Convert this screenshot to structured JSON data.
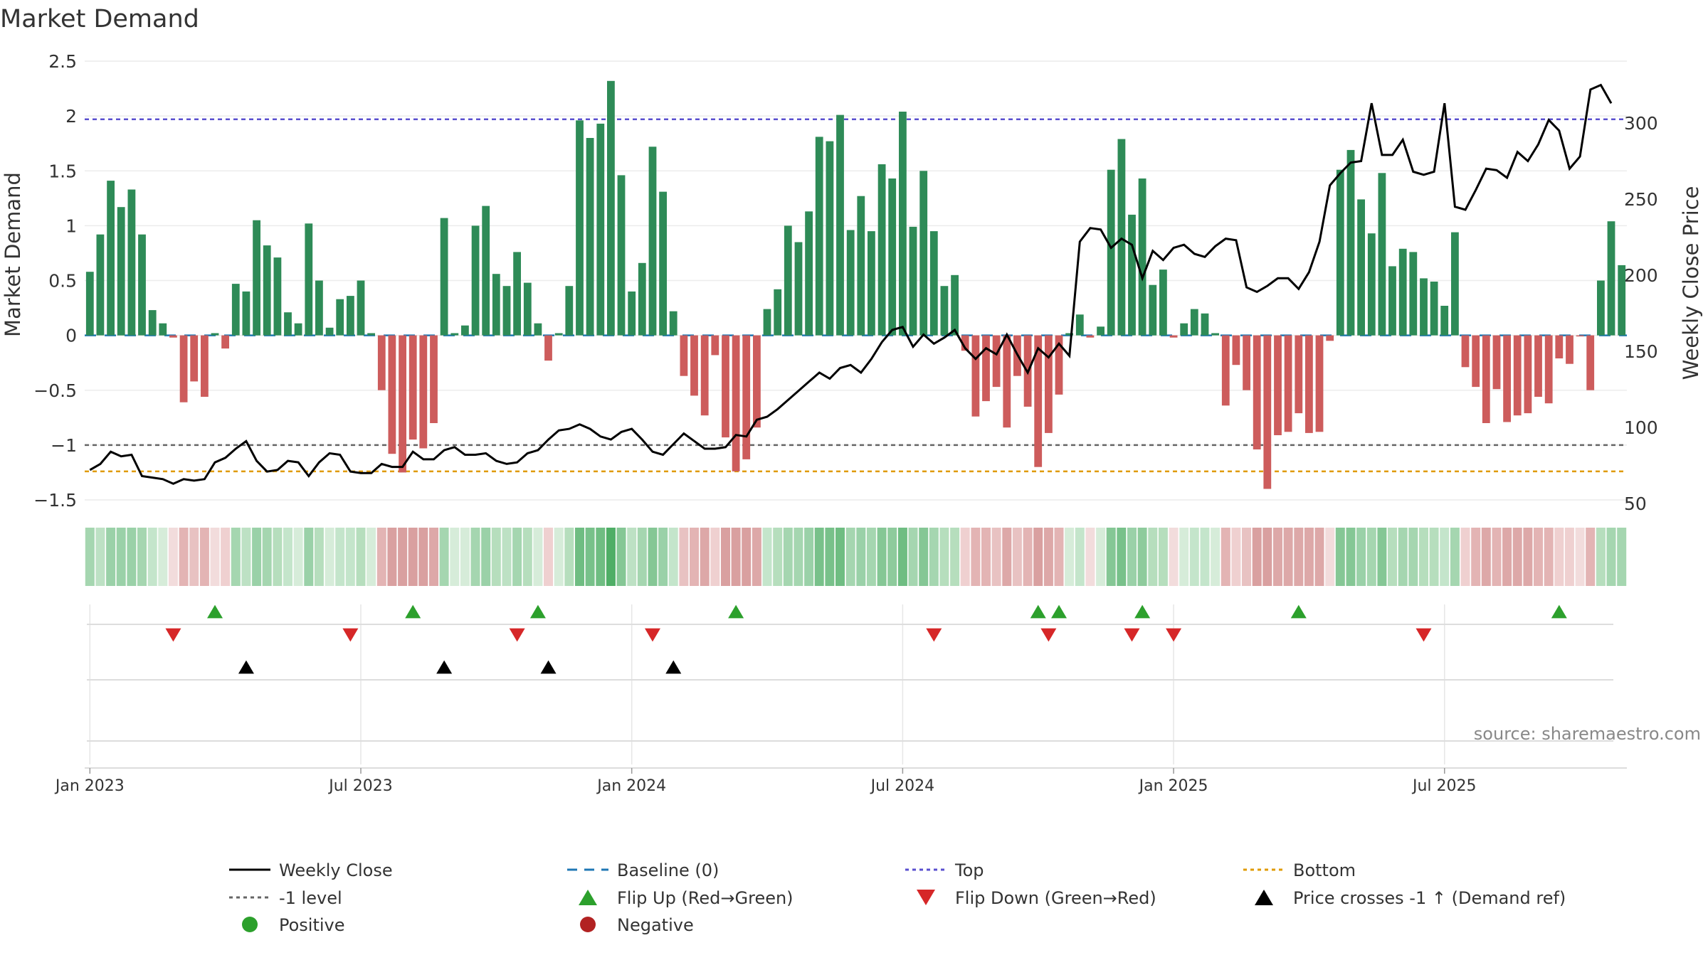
{
  "chart_data": {
    "type": "bar+line",
    "title": "Market Demand",
    "ylabel": "Market Demand",
    "y2label": "Weekly Close Price",
    "ylim": [
      -1.5,
      2.5
    ],
    "y2lim": [
      50,
      340
    ],
    "yticks": [
      {
        "v": 2.5,
        "label": "2.5"
      },
      {
        "v": 2,
        "label": "2"
      },
      {
        "v": 1.5,
        "label": "1.5"
      },
      {
        "v": 1,
        "label": "1"
      },
      {
        "v": 0.5,
        "label": "0.5"
      },
      {
        "v": 0,
        "label": "0"
      },
      {
        "v": -0.5,
        "label": "−0.5"
      },
      {
        "v": -1,
        "label": "−1"
      },
      {
        "v": -1.5,
        "label": "−1.5"
      }
    ],
    "y2ticks": [
      {
        "v": 300,
        "label": "300"
      },
      {
        "v": 250,
        "label": "250"
      },
      {
        "v": 200,
        "label": "200"
      },
      {
        "v": 150,
        "label": "150"
      },
      {
        "v": 100,
        "label": "100"
      },
      {
        "v": 50,
        "label": "50"
      }
    ],
    "xticks": [
      {
        "week": 1,
        "label": "Jan 2023"
      },
      {
        "week": 27,
        "label": "Jul 2023"
      },
      {
        "week": 53,
        "label": "Jan 2024"
      },
      {
        "week": 79,
        "label": "Jul 2024"
      },
      {
        "week": 105,
        "label": "Jan 2025"
      },
      {
        "week": 131,
        "label": "Jul 2025"
      }
    ],
    "reference_lines": {
      "top": 1.97,
      "minus_one": -1.0,
      "bottom": -1.24,
      "baseline": 0
    },
    "demand": [
      0.58,
      0.92,
      1.41,
      1.17,
      1.33,
      0.92,
      0.23,
      0.11,
      -0.02,
      -0.61,
      -0.42,
      -0.56,
      0.02,
      -0.12,
      0.47,
      0.4,
      1.05,
      0.82,
      0.71,
      0.21,
      0.11,
      1.02,
      0.5,
      0.07,
      0.33,
      0.36,
      0.5,
      0.02,
      -0.5,
      -1.08,
      -1.25,
      -0.95,
      -1.03,
      -0.8,
      1.07,
      0.02,
      0.09,
      1.0,
      1.18,
      0.56,
      0.45,
      0.76,
      0.48,
      0.11,
      -0.23,
      0.02,
      0.45,
      1.96,
      1.8,
      1.93,
      2.32,
      1.46,
      0.4,
      0.66,
      1.72,
      1.31,
      0.22,
      -0.37,
      -0.55,
      -0.73,
      -0.18,
      -0.93,
      -1.24,
      -1.13,
      -0.84,
      0.24,
      0.42,
      1.0,
      0.85,
      1.13,
      1.81,
      1.77,
      2.01,
      0.96,
      1.27,
      0.95,
      1.56,
      1.43,
      2.04,
      0.99,
      1.5,
      0.95,
      0.45,
      0.55,
      -0.14,
      -0.74,
      -0.6,
      -0.47,
      -0.84,
      -0.37,
      -0.65,
      -1.2,
      -0.89,
      -0.54,
      0.02,
      0.19,
      -0.02,
      0.08,
      1.51,
      1.79,
      1.1,
      1.43,
      0.46,
      0.6,
      -0.02,
      0.11,
      0.24,
      0.2,
      0.02,
      -0.64,
      -0.27,
      -0.5,
      -1.04,
      -1.4,
      -0.91,
      -0.88,
      -0.71,
      -0.89,
      -0.88,
      -0.05,
      1.51,
      1.69,
      1.24,
      0.93,
      1.48,
      0.63,
      0.79,
      0.76,
      0.52,
      0.49,
      0.27,
      0.94,
      -0.29,
      -0.47,
      -0.8,
      -0.49,
      -0.79,
      -0.73,
      -0.71,
      -0.56,
      -0.62,
      -0.21,
      -0.26,
      -0.01,
      -0.5,
      0.5,
      1.04,
      0.64
    ],
    "close": [
      72,
      76,
      84,
      81,
      82,
      68,
      67,
      66,
      63,
      66,
      65,
      66,
      77,
      80,
      86,
      91,
      78,
      71,
      72,
      78,
      77,
      68,
      77,
      83,
      82,
      71,
      70,
      70,
      76,
      74,
      74,
      84,
      79,
      79,
      85,
      87,
      82,
      82,
      83,
      78,
      76,
      77,
      83,
      85,
      92,
      98,
      99,
      102,
      99,
      94,
      92,
      97,
      99,
      92,
      84,
      82,
      89,
      96,
      91,
      86,
      86,
      87,
      95,
      94,
      105,
      107,
      112,
      118,
      124,
      130,
      136,
      132,
      139,
      141,
      136,
      145,
      156,
      164,
      166,
      153,
      161,
      155,
      159,
      164,
      152,
      145,
      152,
      148,
      161,
      148,
      136,
      152,
      146,
      155,
      147,
      222,
      231,
      230,
      218,
      224,
      220,
      198,
      216,
      210,
      218,
      220,
      214,
      212,
      219,
      224,
      223,
      192,
      189,
      193,
      198,
      198,
      191,
      202,
      222,
      259,
      267,
      274,
      275,
      313,
      279,
      279,
      289,
      268,
      266,
      268,
      313,
      245,
      243,
      256,
      270,
      269,
      264,
      281,
      275,
      286,
      302,
      295,
      270,
      278,
      322,
      325,
      313
    ],
    "heat_colors": [
      "#a5d6b0",
      "#bde1c4",
      "#9ad1a8",
      "#9ad1a8",
      "#9ad1a8",
      "#a5d6b0",
      "#c4e5cb",
      "#d6ecd9",
      "#f2dcdc",
      "#e3b4b4",
      "#e8c2c2",
      "#e3b4b4",
      "#f2dcdc",
      "#efd0d0",
      "#a5d6b0",
      "#bde1c4",
      "#9ad1a8",
      "#a5d6b0",
      "#b6debd",
      "#c4e5cb",
      "#d6ecd9",
      "#9ad1a8",
      "#b6debd",
      "#d6ecd9",
      "#c4e5cb",
      "#c4e5cb",
      "#b6debd",
      "#d6ecd9",
      "#e3b4b4",
      "#d9a0a0",
      "#d9a0a0",
      "#d9a0a0",
      "#d9a0a0",
      "#dda8a8",
      "#a5d6b0",
      "#d6ecd9",
      "#d6ecd9",
      "#a5d6b0",
      "#9ad1a8",
      "#b6debd",
      "#bde1c4",
      "#a5d6b0",
      "#b6debd",
      "#d6ecd9",
      "#efd0d0",
      "#d6ecd9",
      "#b6debd",
      "#6fbd82",
      "#78c18a",
      "#6fbd82",
      "#4fae66",
      "#85c795",
      "#bde1c4",
      "#a5d6b0",
      "#85c795",
      "#9ad1a8",
      "#c4e5cb",
      "#e8c2c2",
      "#e3b4b4",
      "#dda8a8",
      "#efd0d0",
      "#d9a0a0",
      "#d9a0a0",
      "#d9a0a0",
      "#dda8a8",
      "#c4e5cb",
      "#b6debd",
      "#a5d6b0",
      "#a5d6b0",
      "#9ad1a8",
      "#78c18a",
      "#78c18a",
      "#6fbd82",
      "#a5d6b0",
      "#9ad1a8",
      "#a5d6b0",
      "#85c795",
      "#8ecb9c",
      "#6fbd82",
      "#a5d6b0",
      "#85c795",
      "#a5d6b0",
      "#b6debd",
      "#b6debd",
      "#efd0d0",
      "#e3b4b4",
      "#e3b4b4",
      "#e8c2c2",
      "#dda8a8",
      "#e8c2c2",
      "#e3b4b4",
      "#d9a0a0",
      "#dda8a8",
      "#e3b4b4",
      "#d6ecd9",
      "#c4e5cb",
      "#f2dcdc",
      "#d6ecd9",
      "#85c795",
      "#78c18a",
      "#9ad1a8",
      "#8ecb9c",
      "#b6debd",
      "#b6debd",
      "#f2dcdc",
      "#d6ecd9",
      "#c4e5cb",
      "#c4e5cb",
      "#d6ecd9",
      "#e3b4b4",
      "#efd0d0",
      "#e8c2c2",
      "#d9a0a0",
      "#d9a0a0",
      "#dda8a8",
      "#dda8a8",
      "#dda8a8",
      "#dda8a8",
      "#dda8a8",
      "#f2dcdc",
      "#85c795",
      "#85c795",
      "#9ad1a8",
      "#a5d6b0",
      "#85c795",
      "#b6debd",
      "#a5d6b0",
      "#a5d6b0",
      "#b6debd",
      "#b6debd",
      "#c4e5cb",
      "#a5d6b0",
      "#efd0d0",
      "#e3b4b4",
      "#dda8a8",
      "#e3b4b4",
      "#dda8a8",
      "#dda8a8",
      "#dda8a8",
      "#e3b4b4",
      "#e3b4b4",
      "#efd0d0",
      "#efd0d0",
      "#f2dcdc",
      "#e3b4b4",
      "#b6debd",
      "#a5d6b0",
      "#a5d6b0"
    ],
    "flip_up_weeks": [
      13,
      32,
      44,
      63,
      92,
      94,
      102,
      117,
      142
    ],
    "flip_down_weeks": [
      9,
      26,
      42,
      55,
      82,
      93,
      101,
      105,
      129
    ],
    "price_cross_weeks": [
      16,
      35,
      45,
      57
    ],
    "legend": [
      {
        "label": "Weekly Close",
        "symbol": "line-solid",
        "color": "#000000"
      },
      {
        "label": "Baseline (0)",
        "symbol": "line-dashed",
        "color": "#1f77b4"
      },
      {
        "label": "Top",
        "symbol": "line-dotted",
        "color": "#5a4fcf"
      },
      {
        "label": "Bottom",
        "symbol": "line-dotted",
        "color": "#e09b00"
      },
      {
        "label": "-1 level",
        "symbol": "line-dotted",
        "color": "#666666"
      },
      {
        "label": "Flip Up (Red→Green)",
        "symbol": "triangle-up",
        "color": "#2ca02c"
      },
      {
        "label": "Flip Down (Green→Red)",
        "symbol": "triangle-down",
        "color": "#d62728"
      },
      {
        "label": "Price crosses -1 ↑ (Demand ref)",
        "symbol": "triangle-up",
        "color": "#000000"
      },
      {
        "label": "Positive",
        "symbol": "circle",
        "color": "#2ca02c"
      },
      {
        "label": "Negative",
        "symbol": "circle",
        "color": "#b22222"
      }
    ],
    "colors": {
      "positive_bar": "#2e8b57",
      "negative_bar": "#cd5c5c",
      "price_line": "#000000",
      "grid": "#e5e5e5"
    }
  },
  "source": "source: sharemaestro.com"
}
